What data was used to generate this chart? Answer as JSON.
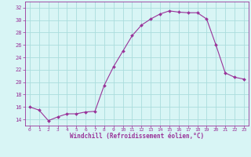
{
  "x": [
    0,
    1,
    2,
    3,
    4,
    5,
    6,
    7,
    8,
    9,
    10,
    11,
    12,
    13,
    14,
    15,
    16,
    17,
    18,
    19,
    20,
    21,
    22,
    23
  ],
  "y": [
    16.0,
    15.5,
    13.8,
    14.4,
    14.9,
    14.9,
    15.2,
    15.3,
    19.5,
    22.5,
    25.0,
    27.5,
    29.2,
    30.2,
    31.0,
    31.5,
    31.3,
    31.2,
    31.2,
    30.2,
    26.0,
    21.5,
    20.8,
    20.5
  ],
  "line_color": "#993399",
  "marker": "D",
  "marker_size": 2,
  "bg_color": "#d8f5f5",
  "grid_color": "#aadddd",
  "xlabel": "Windchill (Refroidissement éolien,°C)",
  "ylabel": "",
  "ylim": [
    13,
    33
  ],
  "xlim": [
    -0.5,
    23.5
  ],
  "yticks": [
    14,
    16,
    18,
    20,
    22,
    24,
    26,
    28,
    30,
    32
  ],
  "xticks": [
    0,
    1,
    2,
    3,
    4,
    5,
    6,
    7,
    8,
    9,
    10,
    11,
    12,
    13,
    14,
    15,
    16,
    17,
    18,
    19,
    20,
    21,
    22,
    23
  ],
  "xlabel_color": "#993399",
  "tick_color": "#993399",
  "tick_label_color": "#993399",
  "figsize": [
    3.2,
    2.0
  ],
  "dpi": 100
}
